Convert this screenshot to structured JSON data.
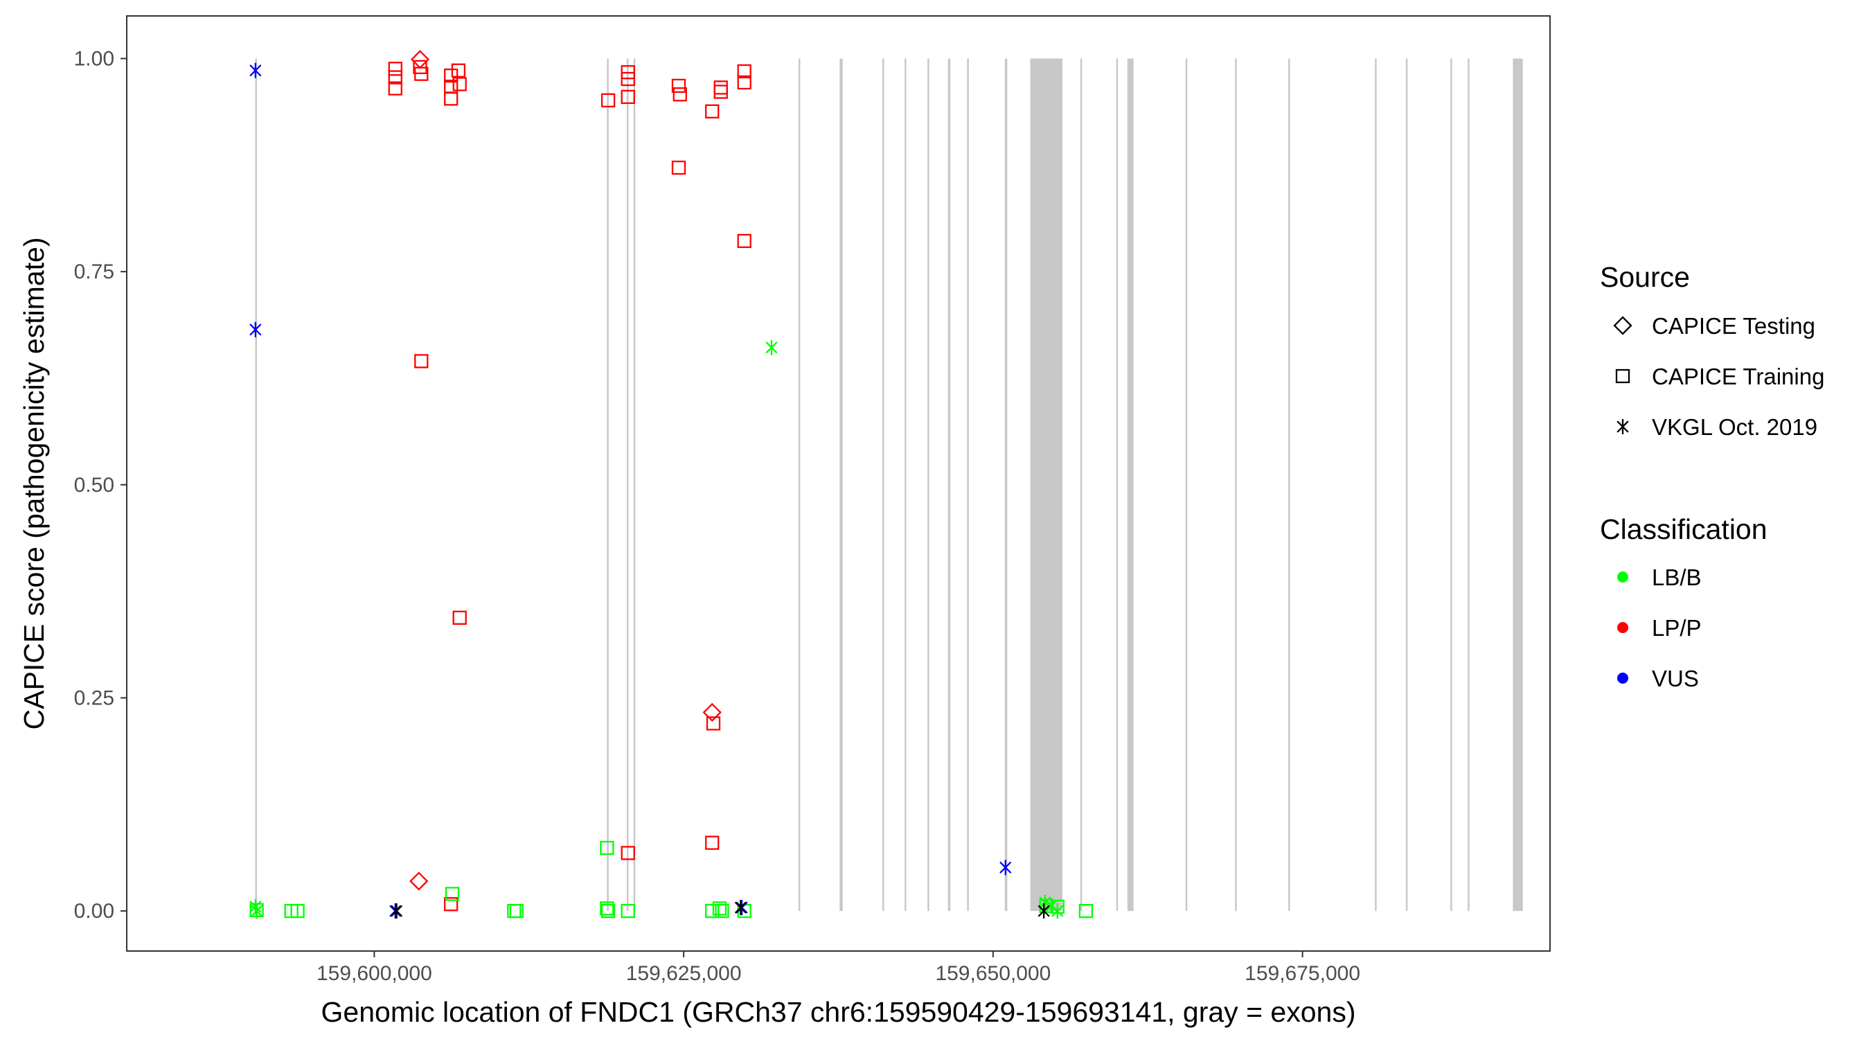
{
  "chart_data": {
    "type": "scatter",
    "xlabel": "Genomic location of FNDC1 (GRCh37 chr6:159590429-159693141, gray = exons)",
    "ylabel": "CAPICE score (pathogenicity estimate)",
    "xlim": [
      159580000,
      159695000
    ],
    "ylim": [
      -0.047,
      1.05
    ],
    "x_ticks": [
      159600000,
      159625000,
      159650000,
      159675000
    ],
    "x_tick_labels": [
      "159,600,000",
      "159,625,000",
      "159,650,000",
      "159,675,000"
    ],
    "y_ticks": [
      0.0,
      0.25,
      0.5,
      0.75,
      1.0
    ],
    "y_tick_labels": [
      "0.00",
      "0.25",
      "0.50",
      "0.75",
      "1.00"
    ],
    "grid": false,
    "exons": [
      [
        159590380,
        159590480
      ],
      [
        159618800,
        159618900
      ],
      [
        159620400,
        159620500
      ],
      [
        159620950,
        159621050
      ],
      [
        159634280,
        159634380
      ],
      [
        159637600,
        159637850
      ],
      [
        159641050,
        159641150
      ],
      [
        159642850,
        159642950
      ],
      [
        159644700,
        159644800
      ],
      [
        159646350,
        159646550
      ],
      [
        159647900,
        159648000
      ],
      [
        159650950,
        159651150
      ],
      [
        159653000,
        159655600
      ],
      [
        159657050,
        159657150
      ],
      [
        159659950,
        159660050
      ],
      [
        159660850,
        159661350
      ],
      [
        159665550,
        159665650
      ],
      [
        159669550,
        159669650
      ],
      [
        159673850,
        159673950
      ],
      [
        159680850,
        159680950
      ],
      [
        159683350,
        159683450
      ],
      [
        159686950,
        159687050
      ],
      [
        159688350,
        159688450
      ],
      [
        159692000,
        159692800
      ]
    ],
    "legend": {
      "position": "right",
      "source_title": "Source",
      "source_items": [
        {
          "label": "CAPICE Testing",
          "shape": "diamond"
        },
        {
          "label": "CAPICE Training",
          "shape": "square"
        },
        {
          "label": "VKGL Oct. 2019",
          "shape": "asterisk"
        }
      ],
      "class_title": "Classification",
      "class_items": [
        {
          "label": "LB/B",
          "color": "#00ff00"
        },
        {
          "label": "LP/P",
          "color": "#ff0000"
        },
        {
          "label": "VUS",
          "color": "#0000ff"
        }
      ]
    },
    "colors": {
      "LB/B": "#00ff00",
      "LP/P": "#ff0000",
      "VUS": "#0000ff",
      "exon": "#c8c8c8"
    },
    "series": [
      {
        "name": "CAPICE Testing",
        "class": "LP/P",
        "shape": "diamond",
        "points": [
          [
            159603700,
            0.999
          ],
          [
            159603600,
            0.035
          ],
          [
            159627300,
            0.233
          ]
        ]
      },
      {
        "name": "CAPICE Training",
        "class": "LP/P",
        "shape": "square",
        "points": [
          [
            159601700,
            0.988
          ],
          [
            159601700,
            0.978
          ],
          [
            159601700,
            0.965
          ],
          [
            159603700,
            0.99
          ],
          [
            159603800,
            0.982
          ],
          [
            159603800,
            0.645
          ],
          [
            159606200,
            0.98
          ],
          [
            159606200,
            0.967
          ],
          [
            159606200,
            0.953
          ],
          [
            159606800,
            0.986
          ],
          [
            159606900,
            0.97
          ],
          [
            159606900,
            0.344
          ],
          [
            159606200,
            0.008
          ],
          [
            159618900,
            0.951
          ],
          [
            159620500,
            0.984
          ],
          [
            159620500,
            0.976
          ],
          [
            159620500,
            0.955
          ],
          [
            159620500,
            0.068
          ],
          [
            159624600,
            0.968
          ],
          [
            159624700,
            0.958
          ],
          [
            159624600,
            0.872
          ],
          [
            159627300,
            0.938
          ],
          [
            159628000,
            0.966
          ],
          [
            159628000,
            0.961
          ],
          [
            159627400,
            0.22
          ],
          [
            159627300,
            0.08
          ],
          [
            159629900,
            0.985
          ],
          [
            159629900,
            0.972
          ],
          [
            159629900,
            0.786
          ]
        ]
      },
      {
        "name": "CAPICE Training",
        "class": "LB/B",
        "shape": "square",
        "points": [
          [
            159590500,
            0.001
          ],
          [
            159593300,
            0.0
          ],
          [
            159593800,
            0.0
          ],
          [
            159606300,
            0.02
          ],
          [
            159611300,
            0.0
          ],
          [
            159611500,
            0.0
          ],
          [
            159618800,
            0.074
          ],
          [
            159618800,
            0.003
          ],
          [
            159618900,
            0.0
          ],
          [
            159620500,
            0.0
          ],
          [
            159627300,
            0.0
          ],
          [
            159627900,
            0.003
          ],
          [
            159628100,
            0.0
          ],
          [
            159629900,
            0.0
          ],
          [
            159654300,
            0.006
          ],
          [
            159655200,
            0.005
          ],
          [
            159657500,
            0.0
          ]
        ]
      },
      {
        "name": "VKGL Oct. 2019",
        "class": "VUS",
        "shape": "asterisk",
        "points": [
          [
            159590400,
            0.986
          ],
          [
            159590400,
            0.682
          ],
          [
            159601700,
            0.0
          ],
          [
            159629700,
            0.004
          ],
          [
            159651000,
            0.051
          ]
        ]
      },
      {
        "name": "VKGL Oct. 2019",
        "class": "LB/B",
        "shape": "asterisk",
        "points": [
          [
            159590400,
            0.005
          ],
          [
            159590500,
            0.0
          ],
          [
            159632100,
            0.661
          ],
          [
            159654200,
            0.01
          ],
          [
            159654700,
            0.006
          ],
          [
            159655200,
            0.0
          ]
        ]
      },
      {
        "name": "VKGL Oct. 2019",
        "class": "black",
        "shape": "asterisk",
        "points": [
          [
            159601800,
            0.0
          ],
          [
            159629600,
            0.004
          ],
          [
            159654100,
            0.0
          ]
        ]
      }
    ]
  }
}
